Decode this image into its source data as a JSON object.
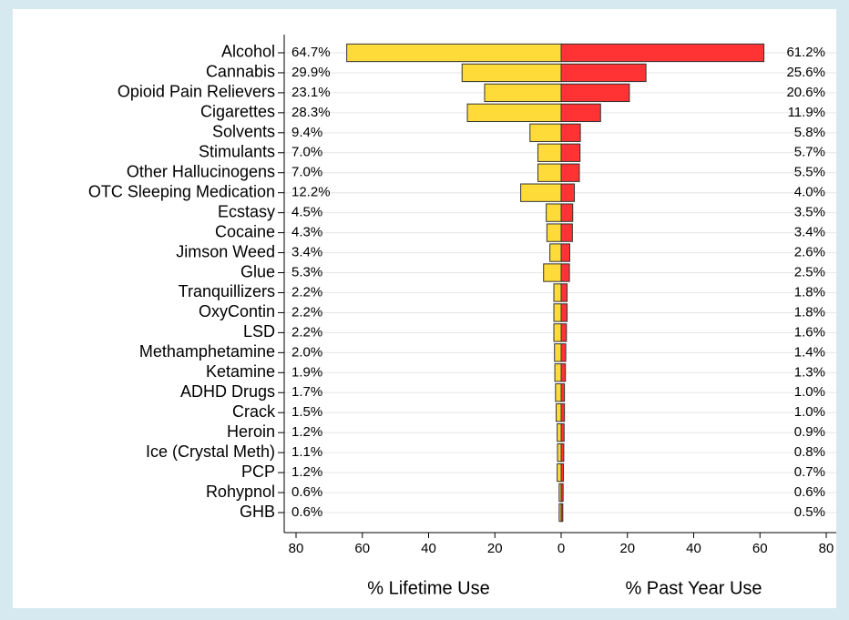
{
  "chart_data": {
    "type": "butterfly",
    "categories": [
      "Alcohol",
      "Cannabis",
      "Opioid Pain Relievers",
      "Cigarettes",
      "Solvents",
      "Stimulants",
      "Other Hallucinogens",
      "OTC Sleeping Medication",
      "Ecstasy",
      "Cocaine",
      "Jimson Weed",
      "Glue",
      "Tranquillizers",
      "OxyContin",
      "LSD",
      "Methamphetamine",
      "Ketamine",
      "ADHD Drugs",
      "Crack",
      "Heroin",
      "Ice (Crystal Meth)",
      "PCP",
      "Rohypnol",
      "GHB"
    ],
    "series": [
      {
        "name": "% Lifetime Use",
        "side": "left",
        "color": "#ffdb3a",
        "values": [
          64.7,
          29.9,
          23.1,
          28.3,
          9.4,
          7.0,
          7.0,
          12.2,
          4.5,
          4.3,
          3.4,
          5.3,
          2.2,
          2.2,
          2.2,
          2.0,
          1.9,
          1.7,
          1.5,
          1.2,
          1.1,
          1.2,
          0.6,
          0.6
        ],
        "value_labels": [
          "64.7%",
          "29.9%",
          "23.1%",
          "28.3%",
          "9.4%",
          "7.0%",
          "7.0%",
          "12.2%",
          "4.5%",
          "4.3%",
          "3.4%",
          "5.3%",
          "2.2%",
          "2.2%",
          "2.2%",
          "2.0%",
          "1.9%",
          "1.7%",
          "1.5%",
          "1.2%",
          "1.1%",
          "1.2%",
          "0.6%",
          "0.6%"
        ]
      },
      {
        "name": "% Past Year Use",
        "side": "right",
        "color": "#ff3333",
        "values": [
          61.2,
          25.6,
          20.6,
          11.9,
          5.8,
          5.7,
          5.5,
          4.0,
          3.5,
          3.4,
          2.6,
          2.5,
          1.8,
          1.8,
          1.6,
          1.4,
          1.3,
          1.0,
          1.0,
          0.9,
          0.8,
          0.7,
          0.6,
          0.5
        ],
        "value_labels": [
          "61.2%",
          "25.6%",
          "20.6%",
          "11.9%",
          "5.8%",
          "5.7%",
          "5.5%",
          "4.0%",
          "3.5%",
          "3.4%",
          "2.6%",
          "2.5%",
          "1.8%",
          "1.8%",
          "1.6%",
          "1.4%",
          "1.3%",
          "1.0%",
          "1.0%",
          "0.9%",
          "0.8%",
          "0.7%",
          "0.6%",
          "0.5%"
        ]
      }
    ],
    "xlim": [
      -80,
      80
    ],
    "xticks": [
      {
        "value": -80,
        "label": "80"
      },
      {
        "value": -60,
        "label": "60"
      },
      {
        "value": -40,
        "label": "40"
      },
      {
        "value": -20,
        "label": "20"
      },
      0,
      20,
      40,
      60,
      80
    ],
    "grid": true
  }
}
